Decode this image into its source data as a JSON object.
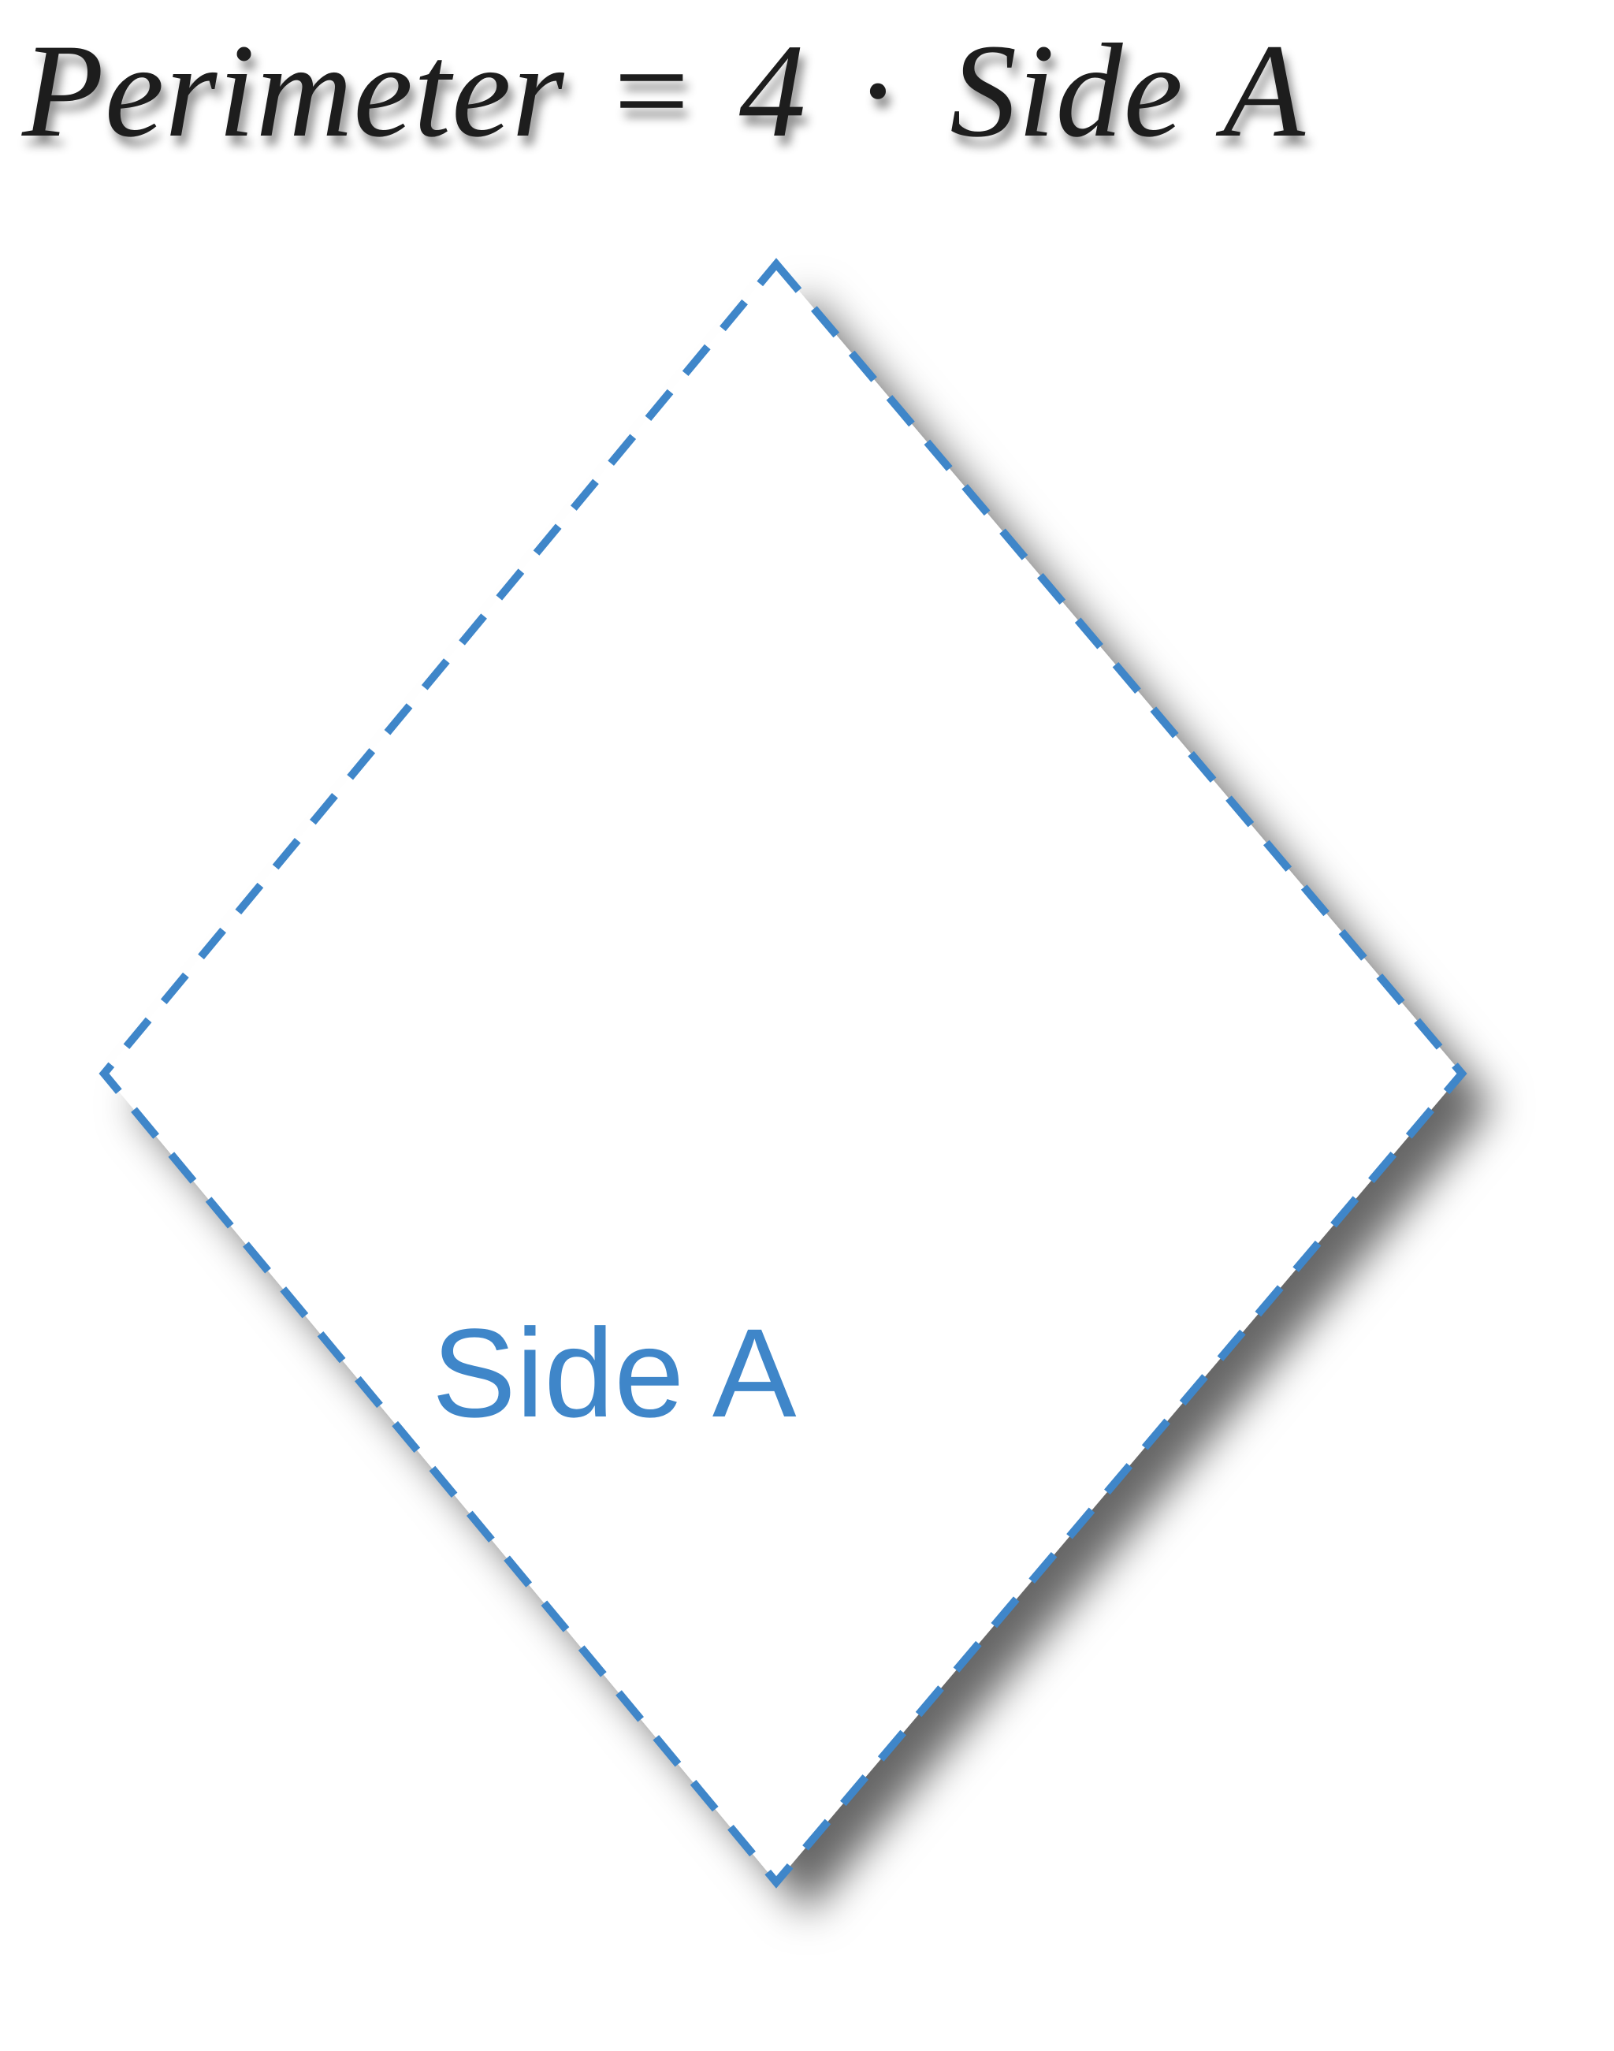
{
  "formula": {
    "lhs": "Perimeter",
    "equals": "=",
    "coefficient": "4",
    "times": "·",
    "side_word": "Side",
    "side_letter": "A"
  },
  "shape": {
    "type": "rhombus",
    "side_label": "Side A",
    "stroke_color": "#3f86c9",
    "fill_color": "#ffffff",
    "stroke_style": "dashed"
  }
}
